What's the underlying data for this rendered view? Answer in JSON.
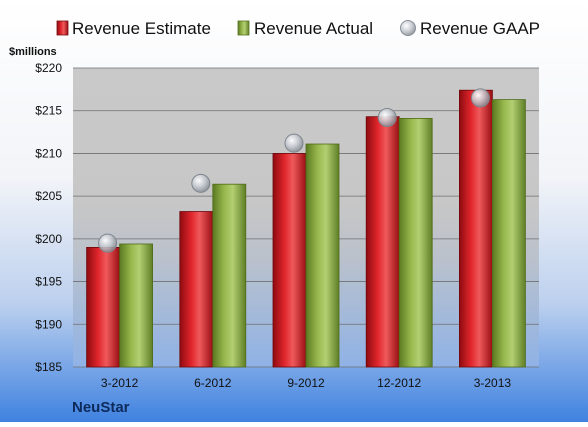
{
  "chart_data": {
    "type": "bar",
    "company": "NeuStar",
    "ylabel": "$millions",
    "categories": [
      "3-2012",
      "6-2012",
      "9-2012",
      "12-2012",
      "3-2013"
    ],
    "series": [
      {
        "name": "Revenue Estimate",
        "kind": "bar",
        "color": "#c8141c",
        "values": [
          199.0,
          203.2,
          210.0,
          214.3,
          217.4
        ]
      },
      {
        "name": "Revenue Actual",
        "kind": "bar",
        "color": "#86a83c",
        "values": [
          199.4,
          206.4,
          211.1,
          214.1,
          216.3
        ]
      },
      {
        "name": "Revenue GAAP",
        "kind": "marker",
        "color": "#b9bfc7",
        "values": [
          199.5,
          206.5,
          211.2,
          214.2,
          216.5
        ]
      }
    ],
    "ylim": [
      185,
      220
    ],
    "yticks": [
      185,
      190,
      195,
      200,
      205,
      210,
      215,
      220
    ],
    "ytick_labels": [
      "$185",
      "$190",
      "$195",
      "$200",
      "$205",
      "$210",
      "$215",
      "$220"
    ],
    "grid": true,
    "legend_position": "top"
  }
}
